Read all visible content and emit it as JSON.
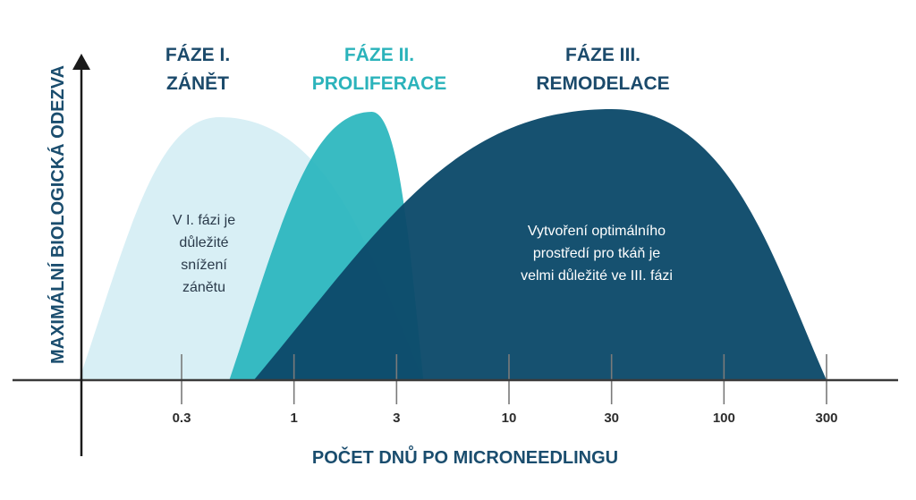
{
  "chart_data": {
    "type": "area",
    "xscale": "log",
    "xlim": [
      0.1,
      300
    ],
    "xlabel": "POČET DNŮ PO MICRONEEDLINGU",
    "ylabel": "MAXIMÁLNÍ BIOLOGICKÁ ODEZVA",
    "ticks": [
      "0.3",
      "1",
      "3",
      "10",
      "30",
      "100",
      "300"
    ],
    "tick_values": [
      0.3,
      1,
      3,
      10,
      30,
      100,
      300
    ],
    "series": [
      {
        "title_line1": "FÁZE I.",
        "title_line2": "ZÁNĚT",
        "description": [
          "V I. fázi je",
          "důležité",
          "snížení",
          "zánětu"
        ],
        "start": 0.1,
        "peak": 0.45,
        "end": 4.0,
        "height": 0.98,
        "fill_color": "#d8eff5",
        "title_color": "#1b4a6b",
        "text_color": "#2a3a4a"
      },
      {
        "title_line1": "FÁZE II.",
        "title_line2": "PROLIFERACE",
        "description": [],
        "start": 0.5,
        "peak": 2.3,
        "end": 4.0,
        "height": 1.0,
        "fill_color": "#28b5bd",
        "title_color": "#2bb3bb",
        "text_color": "#ffffff"
      },
      {
        "title_line1": "FÁZE III.",
        "title_line2": "REMODELACE",
        "description": [
          "Vytvoření optimálního",
          "prostředí pro tkáň je",
          "velmi důležité ve III. fázi"
        ],
        "start": 0.65,
        "peak": 30,
        "end": 300,
        "height": 1.01,
        "fill_color": "#0c4a6a",
        "title_color": "#1b4a6b",
        "text_color": "#ffffff"
      }
    ],
    "colors": {
      "axis": "#3a3a3a",
      "tick": "#7a7a7a",
      "axis_title": "#1a4d6e"
    }
  }
}
